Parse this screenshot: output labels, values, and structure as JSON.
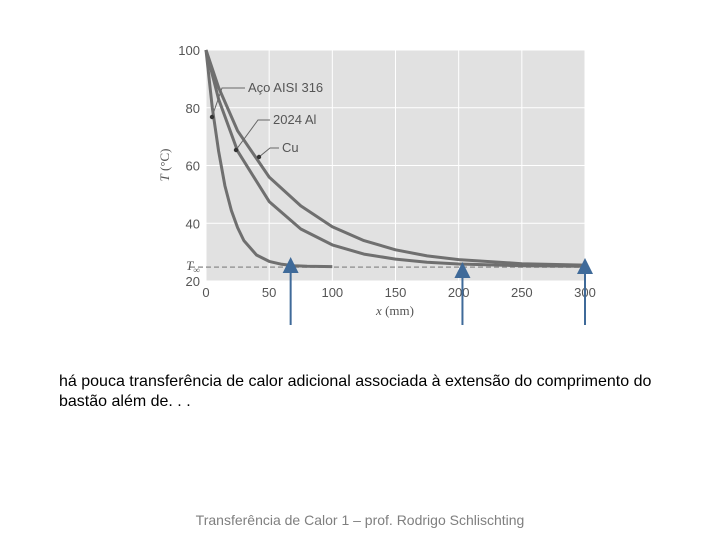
{
  "chart_data": {
    "type": "line",
    "xlabel_var": "x",
    "xlabel_unit": " (mm)",
    "ylabel_var": "T",
    "ylabel_unit": " (°C)",
    "xlim": [
      0,
      300
    ],
    "ylim": [
      20,
      100
    ],
    "x_ticks": [
      "0",
      "50",
      "100",
      "150",
      "200",
      "250",
      "300"
    ],
    "y_ticks": [
      "20",
      "40",
      "60",
      "80",
      "100"
    ],
    "t_inf_label": "T∞",
    "t_inf_value": 25,
    "grid": true,
    "series": [
      {
        "name": "Aço AISI 316",
        "x": [
          0,
          5,
          10,
          15,
          20,
          25,
          30,
          40,
          50,
          60,
          70,
          80,
          100
        ],
        "y": [
          100,
          80,
          65,
          53,
          44.5,
          38.5,
          34,
          29,
          26.8,
          25.8,
          25.3,
          25.1,
          25
        ]
      },
      {
        "name": "2024 Al",
        "x": [
          0,
          10,
          25,
          50,
          75,
          100,
          125,
          150,
          175,
          200,
          250,
          300
        ],
        "y": [
          100,
          83,
          65,
          47.5,
          38,
          32.5,
          29.3,
          27.6,
          26.5,
          25.9,
          25.3,
          25.1
        ]
      },
      {
        "name": "Cu",
        "x": [
          0,
          10,
          25,
          50,
          75,
          100,
          125,
          150,
          175,
          200,
          250,
          300
        ],
        "y": [
          100,
          87,
          72,
          56,
          46,
          38.8,
          34,
          30.8,
          28.7,
          27.4,
          26,
          25.5
        ]
      }
    ],
    "arrow_x": [
      67,
      203,
      300
    ]
  },
  "caption": "há pouca transferência de calor adicional associada à extensão do comprimento do bastão além de. . .",
  "footer": "Transferência de Calor 1 – prof. Rodrigo Schlischting",
  "colors": {
    "plot_bg": "#e1e1e1",
    "grid": "#ffffff",
    "curve": "#6f6f6f",
    "arrow": "#3f6a99",
    "dash": "#999999"
  }
}
